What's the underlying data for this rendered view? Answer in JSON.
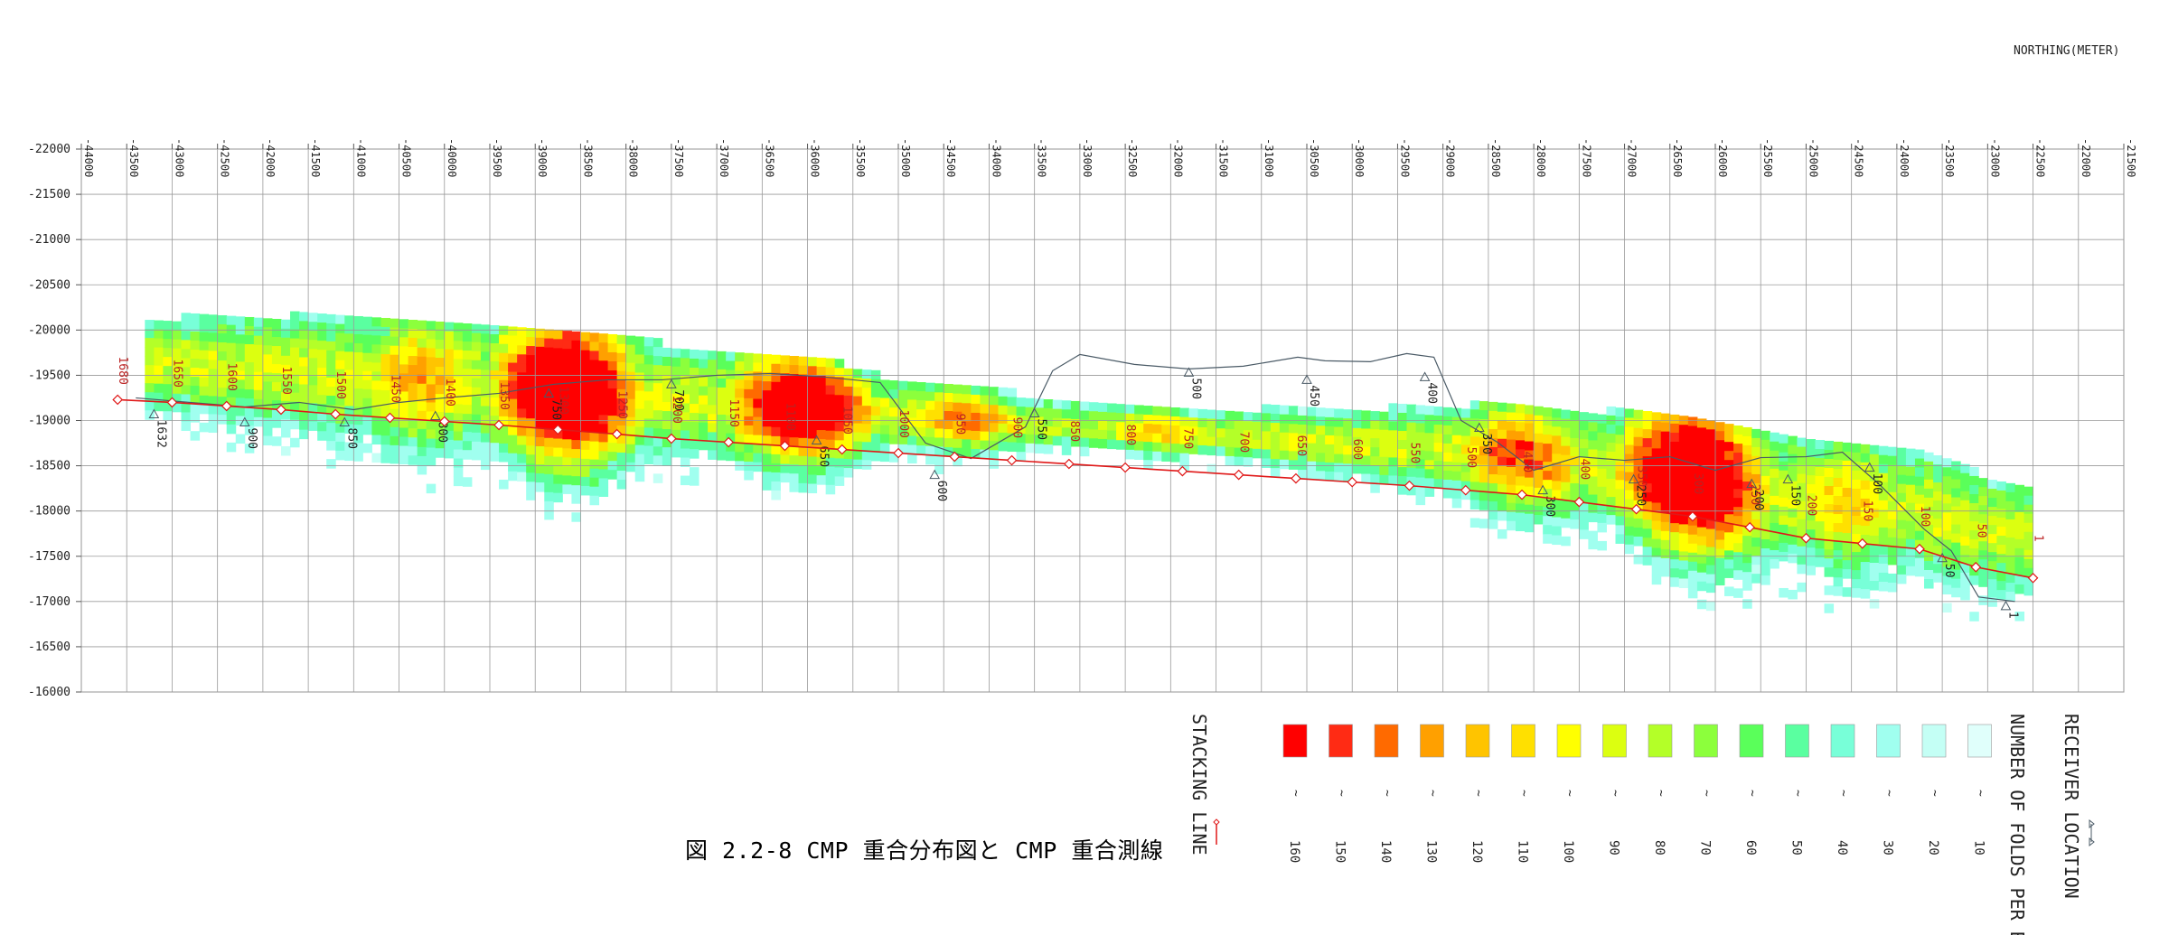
{
  "caption": "図 2.2-8 CMP 重合分布図と CMP 重合測線",
  "chart_data": {
    "type": "heatmap",
    "x_unit_label": "NORTHING(METER)",
    "xlim": [
      -44000,
      -21500
    ],
    "ylim": [
      -22000,
      -16000
    ],
    "x_ticks": [
      -44000,
      -43500,
      -43000,
      -42500,
      -42000,
      -41500,
      -41000,
      -40500,
      -40000,
      -39500,
      -39000,
      -38500,
      -38000,
      -37500,
      -37000,
      -36500,
      -36000,
      -35500,
      -35000,
      -34500,
      -34000,
      -33500,
      -33000,
      -32500,
      -32000,
      -31500,
      -31000,
      -30500,
      -30000,
      -29500,
      -29000,
      -28500,
      -28000,
      -27500,
      -27000,
      -26500,
      -26000,
      -25500,
      -25000,
      -24500,
      -24000,
      -23500,
      -23000,
      -22500,
      -22000,
      -21500
    ],
    "y_ticks": [
      -22000,
      -21500,
      -21000,
      -20500,
      -20000,
      -19500,
      -19000,
      -18500,
      -18000,
      -17500,
      -17000,
      -16500,
      -16000
    ],
    "grid": true,
    "stacking_line": {
      "label": "STACKING LINE",
      "color": "#e01818",
      "points": [
        [
          -43600,
          -19230
        ],
        [
          -43000,
          -19200
        ],
        [
          -42400,
          -19160
        ],
        [
          -41800,
          -19120
        ],
        [
          -41200,
          -19070
        ],
        [
          -40600,
          -19030
        ],
        [
          -40000,
          -18990
        ],
        [
          -39400,
          -18950
        ],
        [
          -38750,
          -18900
        ],
        [
          -38100,
          -18850
        ],
        [
          -37500,
          -18800
        ],
        [
          -36870,
          -18760
        ],
        [
          -36250,
          -18720
        ],
        [
          -35620,
          -18680
        ],
        [
          -35000,
          -18640
        ],
        [
          -34380,
          -18600
        ],
        [
          -33750,
          -18560
        ],
        [
          -33120,
          -18520
        ],
        [
          -32500,
          -18480
        ],
        [
          -31870,
          -18440
        ],
        [
          -31250,
          -18400
        ],
        [
          -30620,
          -18360
        ],
        [
          -30000,
          -18320
        ],
        [
          -29370,
          -18280
        ],
        [
          -28750,
          -18230
        ],
        [
          -28130,
          -18180
        ],
        [
          -27500,
          -18100
        ],
        [
          -26870,
          -18020
        ],
        [
          -26250,
          -17940
        ],
        [
          -25620,
          -17820
        ],
        [
          -25000,
          -17700
        ],
        [
          -24380,
          -17640
        ],
        [
          -23750,
          -17580
        ],
        [
          -23130,
          -17380
        ],
        [
          -22500,
          -17260
        ]
      ],
      "labels": [
        {
          "text": "1680",
          "x": -43600,
          "y": -19230
        },
        {
          "text": "1650",
          "x": -43000,
          "y": -19200
        },
        {
          "text": "1600",
          "x": -42400,
          "y": -19160
        },
        {
          "text": "1550",
          "x": -41800,
          "y": -19120
        },
        {
          "text": "1500",
          "x": -41200,
          "y": -19070
        },
        {
          "text": "1450",
          "x": -40600,
          "y": -19030
        },
        {
          "text": "1400",
          "x": -40000,
          "y": -18990
        },
        {
          "text": "1350",
          "x": -39400,
          "y": -18950
        },
        {
          "text": "1300",
          "x": -38750,
          "y": -18900
        },
        {
          "text": "1250",
          "x": -38100,
          "y": -18850
        },
        {
          "text": "1200",
          "x": -37500,
          "y": -18800
        },
        {
          "text": "1150",
          "x": -36870,
          "y": -18760
        },
        {
          "text": "1100",
          "x": -36250,
          "y": -18720
        },
        {
          "text": "1050",
          "x": -35620,
          "y": -18680
        },
        {
          "text": "1000",
          "x": -35000,
          "y": -18640
        },
        {
          "text": "950",
          "x": -34380,
          "y": -18600
        },
        {
          "text": "900",
          "x": -33750,
          "y": -18560
        },
        {
          "text": "850",
          "x": -33120,
          "y": -18520
        },
        {
          "text": "800",
          "x": -32500,
          "y": -18480
        },
        {
          "text": "750",
          "x": -31870,
          "y": -18440
        },
        {
          "text": "700",
          "x": -31250,
          "y": -18400
        },
        {
          "text": "650",
          "x": -30620,
          "y": -18360
        },
        {
          "text": "600",
          "x": -30000,
          "y": -18320
        },
        {
          "text": "550",
          "x": -29370,
          "y": -18280
        },
        {
          "text": "500",
          "x": -28750,
          "y": -18230
        },
        {
          "text": "450",
          "x": -28130,
          "y": -18180
        },
        {
          "text": "400",
          "x": -27500,
          "y": -18100
        },
        {
          "text": "350",
          "x": -26870,
          "y": -18020
        },
        {
          "text": "300",
          "x": -26250,
          "y": -17940
        },
        {
          "text": "250",
          "x": -25620,
          "y": -17820
        },
        {
          "text": "200",
          "x": -25000,
          "y": -17700
        },
        {
          "text": "150",
          "x": -24380,
          "y": -17640
        },
        {
          "text": "100",
          "x": -23750,
          "y": -17580
        },
        {
          "text": "50",
          "x": -23130,
          "y": -17380
        },
        {
          "text": "1",
          "x": -22500,
          "y": -17260
        }
      ]
    },
    "receiver_line": {
      "label": "RECEIVER LOCATION",
      "color": "#4a5a66",
      "points": [
        [
          -43400,
          -19250
        ],
        [
          -42800,
          -19200
        ],
        [
          -42200,
          -19150
        ],
        [
          -41600,
          -19200
        ],
        [
          -41000,
          -19120
        ],
        [
          -40500,
          -19200
        ],
        [
          -40000,
          -19250
        ],
        [
          -39400,
          -19300
        ],
        [
          -38800,
          -19400
        ],
        [
          -38200,
          -19450
        ],
        [
          -37600,
          -19450
        ],
        [
          -37000,
          -19500
        ],
        [
          -36400,
          -19520
        ],
        [
          -35800,
          -19480
        ],
        [
          -35200,
          -19420
        ],
        [
          -34700,
          -18750
        ],
        [
          -34200,
          -18580
        ],
        [
          -33600,
          -18930
        ],
        [
          -33300,
          -19550
        ],
        [
          -33000,
          -19730
        ],
        [
          -32400,
          -19620
        ],
        [
          -31800,
          -19570
        ],
        [
          -31200,
          -19600
        ],
        [
          -30600,
          -19700
        ],
        [
          -30300,
          -19660
        ],
        [
          -29800,
          -19650
        ],
        [
          -29400,
          -19740
        ],
        [
          -29100,
          -19700
        ],
        [
          -28800,
          -19000
        ],
        [
          -28400,
          -18760
        ],
        [
          -28000,
          -18450
        ],
        [
          -27500,
          -18600
        ],
        [
          -27000,
          -18560
        ],
        [
          -26500,
          -18600
        ],
        [
          -26000,
          -18450
        ],
        [
          -25500,
          -18590
        ],
        [
          -25000,
          -18600
        ],
        [
          -24600,
          -18650
        ],
        [
          -24200,
          -18300
        ],
        [
          -23700,
          -17800
        ],
        [
          -23400,
          -17560
        ],
        [
          -23100,
          -17050
        ],
        [
          -22700,
          -17000
        ]
      ],
      "labels": [
        {
          "text": "1632",
          "x": -43200,
          "y": -19070
        },
        {
          "text": "900",
          "x": -42200,
          "y": -18980
        },
        {
          "text": "850",
          "x": -41100,
          "y": -18980
        },
        {
          "text": "800",
          "x": -40100,
          "y": -19050
        },
        {
          "text": "750",
          "x": -38850,
          "y": -19300
        },
        {
          "text": "700",
          "x": -37500,
          "y": -19400
        },
        {
          "text": "650",
          "x": -35900,
          "y": -18780
        },
        {
          "text": "600",
          "x": -34600,
          "y": -18400
        },
        {
          "text": "550",
          "x": -33500,
          "y": -19080
        },
        {
          "text": "500",
          "x": -31800,
          "y": -19530
        },
        {
          "text": "450",
          "x": -30500,
          "y": -19450
        },
        {
          "text": "400",
          "x": -29200,
          "y": -19480
        },
        {
          "text": "350",
          "x": -28600,
          "y": -18920
        },
        {
          "text": "300",
          "x": -27900,
          "y": -18230
        },
        {
          "text": "250",
          "x": -26900,
          "y": -18350
        },
        {
          "text": "200",
          "x": -25600,
          "y": -18300
        },
        {
          "text": "150",
          "x": -25200,
          "y": -18350
        },
        {
          "text": "100",
          "x": -24300,
          "y": -18480
        },
        {
          "text": "50",
          "x": -23500,
          "y": -17480
        },
        {
          "text": "1",
          "x": -22800,
          "y": -16950
        }
      ]
    },
    "legend": {
      "fold_label": "NUMBER OF FOLDS PER BIN",
      "bins": [
        {
          "label": "160",
          "color": "#ff0000"
        },
        {
          "label": "150",
          "color": "#ff2b14"
        },
        {
          "label": "140",
          "color": "#ff6a00"
        },
        {
          "label": "130",
          "color": "#ffa000"
        },
        {
          "label": "120",
          "color": "#ffc400"
        },
        {
          "label": "110",
          "color": "#ffe000"
        },
        {
          "label": "100",
          "color": "#ffff00"
        },
        {
          "label": "90",
          "color": "#dcff10"
        },
        {
          "label": "80",
          "color": "#b4ff28"
        },
        {
          "label": "70",
          "color": "#8cff3c"
        },
        {
          "label": "60",
          "color": "#5aff5a"
        },
        {
          "label": "50",
          "color": "#5affa0"
        },
        {
          "label": "40",
          "color": "#78ffd8"
        },
        {
          "label": "30",
          "color": "#a0ffef"
        },
        {
          "label": "20",
          "color": "#c4fff5"
        },
        {
          "label": "10",
          "color": "#e0fffb"
        }
      ]
    }
  }
}
